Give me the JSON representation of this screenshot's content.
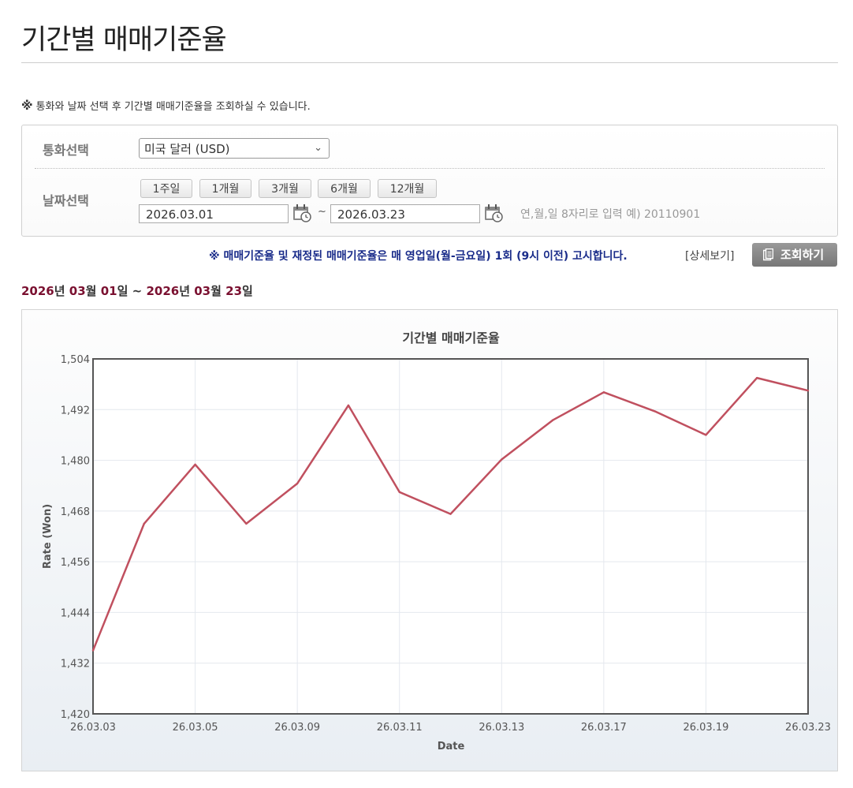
{
  "page": {
    "title": "기간별 매매기준율"
  },
  "notice": {
    "mark": "※",
    "text": "통화와 날짜 선택 후 기간별 매매기준율을 조회하실 수 있습니다."
  },
  "filter": {
    "currency_label": "통화선택",
    "currency_value": "미국 달러 (USD)",
    "date_label": "날짜선택",
    "periods": [
      "1주일",
      "1개월",
      "3개월",
      "6개월",
      "12개월"
    ],
    "start_date": "2026.03.01",
    "end_date": "2026.03.23",
    "tilde": "~",
    "date_hint": "연,월,일 8자리로 입력 예) 20110901"
  },
  "info": {
    "blue_notice": "※ 매매기준율 및 재정된 매매기준율은 매 영업일(월-금요일) 1회 (9시 이전) 고시합니다.",
    "detail_link": "[상세보기]",
    "search_button": "조회하기"
  },
  "range": {
    "start_year": "2026",
    "start_month": "03",
    "start_day": "01",
    "end_year": "2026",
    "end_month": "03",
    "end_day": "23",
    "year_unit": "년",
    "month_unit": "월",
    "day_unit": "일",
    "tilde": "~"
  },
  "colors": {
    "line": "#c0505f",
    "accent": "#7a1030",
    "notice_blue": "#1a2c8a"
  },
  "chart_data": {
    "type": "line",
    "title": "기간별 매매기준율",
    "xlabel": "Date",
    "ylabel": "Rate (Won)",
    "ylim": [
      1420,
      1504
    ],
    "yticks": [
      "1,420",
      "1,432",
      "1,444",
      "1,456",
      "1,468",
      "1,480",
      "1,492",
      "1,504"
    ],
    "xtick_labels": [
      "26.03.03",
      "26.03.05",
      "26.03.09",
      "26.03.11",
      "26.03.13",
      "26.03.17",
      "26.03.19",
      "26.03.23"
    ],
    "grid": true,
    "series": [
      {
        "values": [
          1435,
          1465,
          1479,
          1465,
          1474.5,
          1493,
          1472.5,
          1467.3,
          1480.2,
          1489.5,
          1496.1,
          1491.6,
          1486,
          1499.5,
          1496.5
        ]
      }
    ]
  }
}
